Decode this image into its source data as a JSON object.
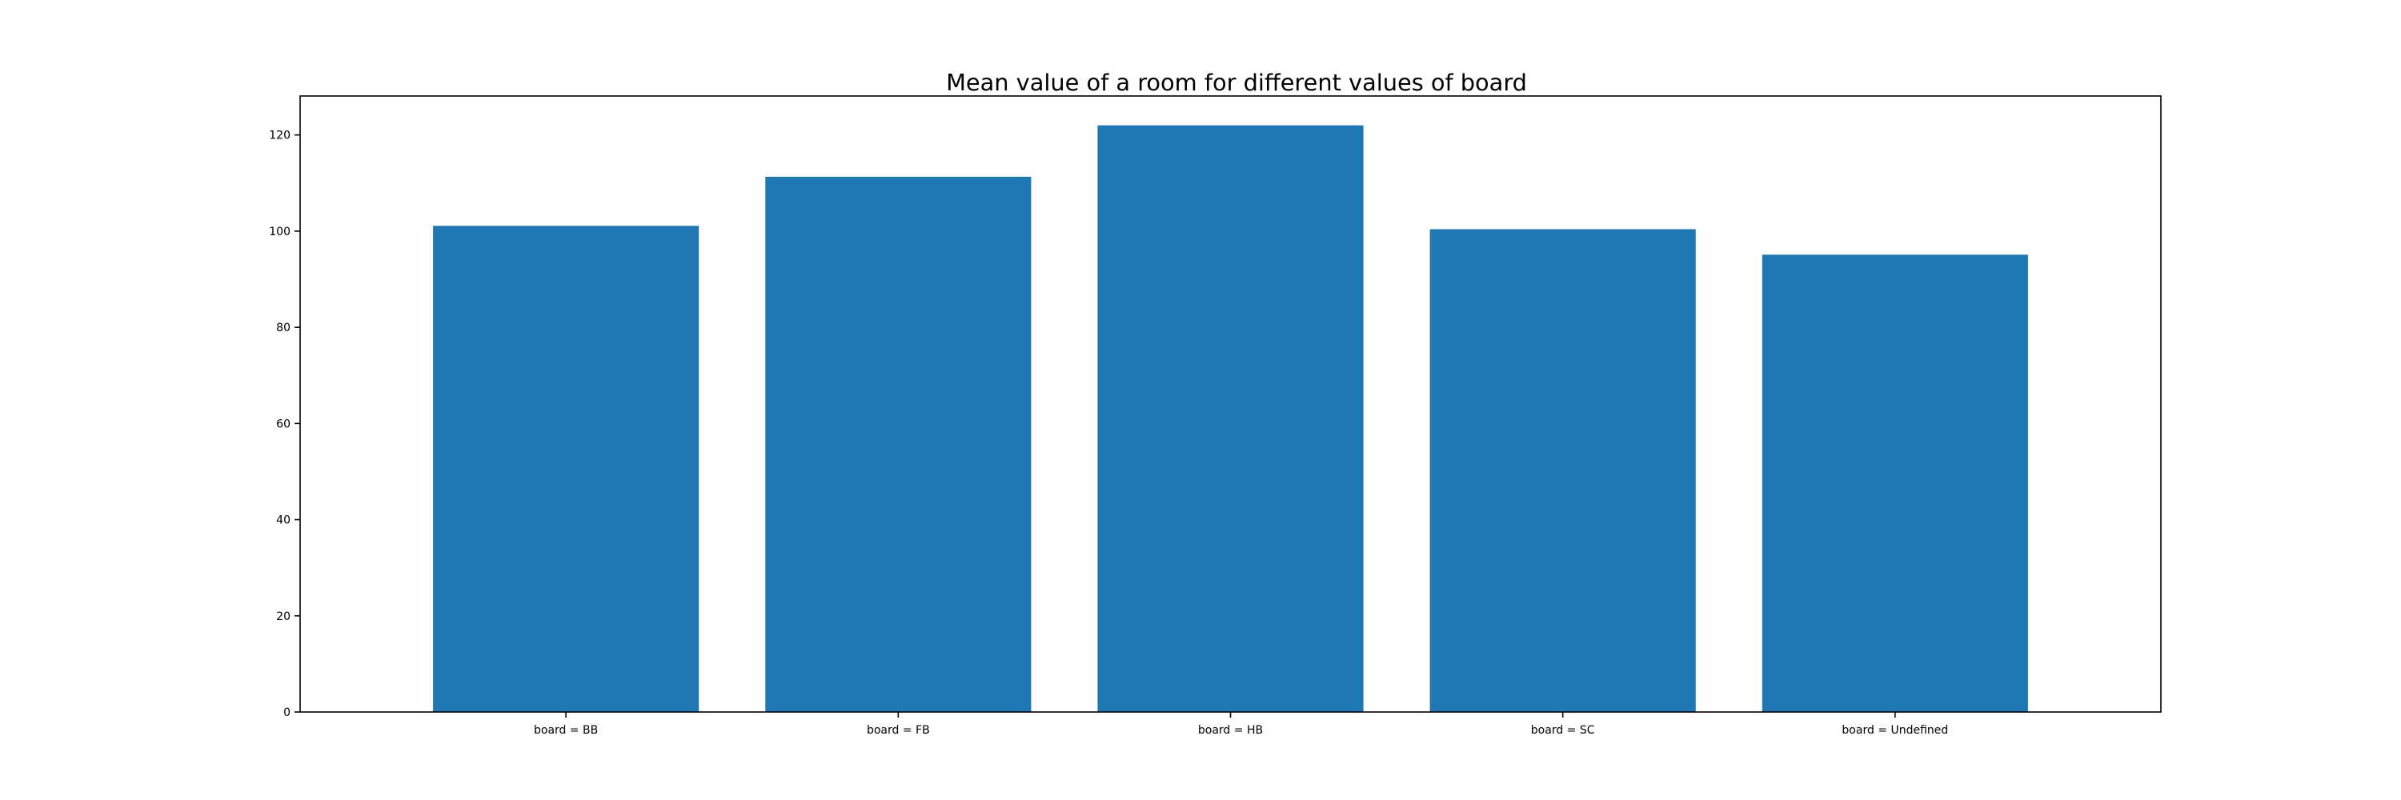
{
  "chart_data": {
    "type": "bar",
    "title": "Mean value of a room for different values of board",
    "xlabel": "",
    "ylabel": "",
    "categories": [
      "board = BB",
      "board = FB",
      "board = HB",
      "board = SC",
      "board = Undefined"
    ],
    "values": [
      101.1,
      111.3,
      122.0,
      100.4,
      95.1
    ],
    "ylim": [
      0,
      128.1
    ],
    "yticks": [
      0,
      20,
      40,
      60,
      80,
      100,
      120
    ],
    "grid": false,
    "legend": "none",
    "colors": {
      "bar": "#1f77b4",
      "axes": "#000000",
      "background": "#ffffff"
    }
  }
}
